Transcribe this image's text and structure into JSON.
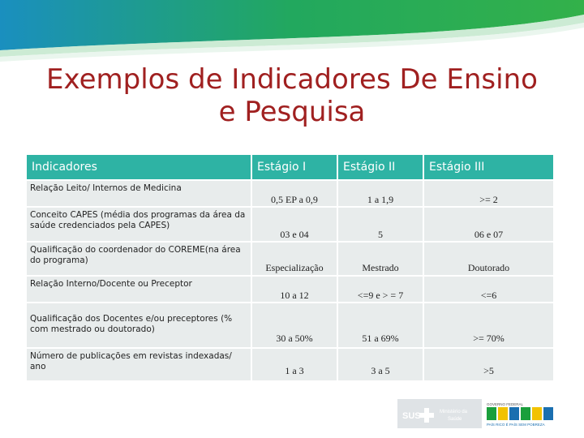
{
  "title_line1": "Exemplos de Indicadores De Ensino",
  "title_line2": "e Pesquisa",
  "table": {
    "headers": [
      "Indicadores",
      "Estágio I",
      "Estágio II",
      "Estágio III"
    ],
    "rows": [
      {
        "indicator": "Relação Leito/ Internos de Medicina",
        "v1": "0,5 EP a 0,9",
        "v2": "1 a 1,9",
        "v3": ">= 2"
      },
      {
        "indicator": "Conceito CAPES (média dos programas da área da saúde credenciados pela CAPES)",
        "v1": "03 e 04",
        "v2": "5",
        "v3": "06 e 07"
      },
      {
        "indicator": "Qualificação do coordenador do COREME(na área do programa)",
        "v1": "Especialização",
        "v2": "Mestrado",
        "v3": "Doutorado"
      },
      {
        "indicator": "Relação Interno/Docente ou Preceptor",
        "v1": "10 a  12",
        "v2": "<=9 e > = 7",
        "v3": "<=6"
      },
      {
        "indicator": "Qualificação dos Docentes e/ou preceptores (% com mestrado ou doutorado)",
        "v1": "30 a 50%",
        "v2": "51 a 69%",
        "v3": ">= 70%"
      },
      {
        "indicator": "Número de publicações em revistas indexadas/ ano",
        "v1": "1 a 3",
        "v2": "3 a 5",
        "v3": ">5"
      }
    ]
  },
  "footer": {
    "sus": "SUS",
    "ministry_line1": "Ministério da",
    "ministry_line2": "Saúde",
    "gov_top": "GOVERNO FEDERAL",
    "brasil": "BRASIL",
    "slogan": "PAÍS RICO É PAÍS SEM POBREZA"
  },
  "colors": {
    "title": "#a02020",
    "header_bg": "#2eb3a4",
    "row_bg": "#e8ecec",
    "band_green": "#1f9f5a",
    "band_blue": "#1a6fb0"
  }
}
